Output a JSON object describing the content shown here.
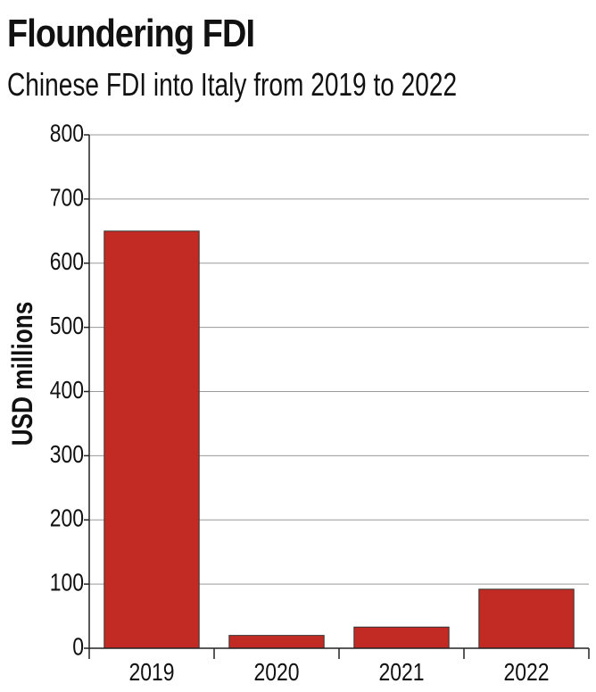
{
  "chart_data": {
    "type": "bar",
    "title": "Floundering FDI",
    "subtitle": "Chinese FDI into Italy from 2019 to 2022",
    "xlabel": "",
    "ylabel": "USD millions",
    "categories": [
      "2019",
      "2020",
      "2021",
      "2022"
    ],
    "values": [
      650,
      20,
      33,
      92
    ],
    "ylim": [
      0,
      800
    ],
    "yticks": [
      0,
      100,
      200,
      300,
      400,
      500,
      600,
      700,
      800
    ],
    "ytick_labels": [
      "0",
      "100",
      "200",
      "300",
      "400",
      "500",
      "600",
      "700",
      "800"
    ],
    "grid": true,
    "bar_color": "#c22b23",
    "bar_edge_color": "#333333",
    "grid_color": "#999999"
  }
}
